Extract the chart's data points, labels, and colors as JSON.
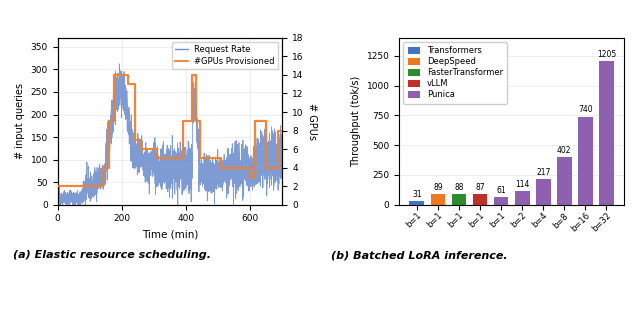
{
  "left": {
    "xlabel": "Time (min)",
    "ylabel_left": "# input queries",
    "ylabel_right": "# GPUs",
    "xlim": [
      0,
      700
    ],
    "ylim_left": [
      0,
      370
    ],
    "ylim_right": [
      0,
      18
    ],
    "yticks_left": [
      0,
      50,
      100,
      150,
      200,
      250,
      300,
      350
    ],
    "yticks_right": [
      0,
      2,
      4,
      6,
      8,
      10,
      12,
      14,
      16,
      18
    ],
    "xticks": [
      0,
      200,
      400,
      600
    ],
    "request_color": "#7090d0",
    "gpu_color": "#f08030",
    "legend_request": "Request Rate",
    "legend_gpu": "#GPUs Provisioned",
    "caption": "(a) Elastic resource scheduling."
  },
  "right": {
    "ylabel": "Throughput (tok/s)",
    "ylim": [
      0,
      1400
    ],
    "yticks": [
      0,
      250,
      500,
      750,
      1000,
      1250
    ],
    "categories": [
      "b=1",
      "b=1",
      "b=1",
      "b=1",
      "b=1",
      "b=2",
      "b=4",
      "b=8",
      "b=16",
      "b=32"
    ],
    "values": [
      31,
      89,
      88,
      87,
      61,
      114,
      217,
      402,
      740,
      1205
    ],
    "bar_colors": [
      "#4472c4",
      "#f07820",
      "#2e8b2e",
      "#c0302b",
      "#9060b0",
      "#9060b0",
      "#9060b0",
      "#9060b0",
      "#9060b0",
      "#9060b0"
    ],
    "legend_labels": [
      "Transformers",
      "DeepSpeed",
      "FasterTransformer",
      "vLLM",
      "Punica"
    ],
    "legend_colors": [
      "#4472c4",
      "#f07820",
      "#2e8b2e",
      "#c0302b",
      "#9060b0"
    ],
    "caption": "(b) Batched LoRA inference."
  }
}
